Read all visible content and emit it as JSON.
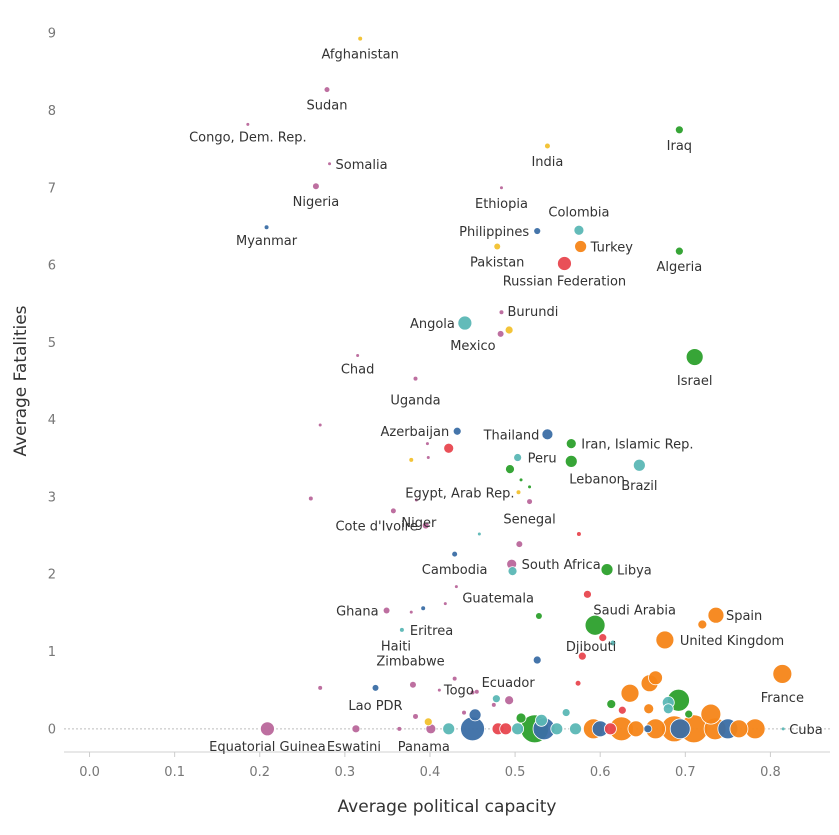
{
  "chart_data": {
    "type": "scatter",
    "title": "",
    "xlabel": "Average political capacity",
    "ylabel": "Average Fatalities",
    "xlim": [
      -0.03,
      0.87
    ],
    "ylim": [
      -0.3,
      9.3
    ],
    "x_ticks": [
      "0.0",
      "0.1",
      "0.2",
      "0.3",
      "0.4",
      "0.5",
      "0.6",
      "0.7",
      "0.8"
    ],
    "y_ticks": [
      "0",
      "1",
      "2",
      "3",
      "4",
      "5",
      "6",
      "7",
      "8",
      "9"
    ],
    "grid": false,
    "colors": {
      "orange": "#f58518",
      "green": "#2ca02c",
      "blue": "#3b6ea5",
      "teal": "#5bb7b5",
      "pink": "#b9679b",
      "red": "#e8474f",
      "yellow": "#f2c12e"
    },
    "points": [
      {
        "x": 0.318,
        "y": 8.93,
        "r": 2,
        "color": "yellow",
        "label": "Afghanistan"
      },
      {
        "x": 0.279,
        "y": 8.27,
        "r": 2.5,
        "color": "pink",
        "label": "Sudan"
      },
      {
        "x": 0.186,
        "y": 7.82,
        "r": 1.5,
        "color": "pink",
        "label": "Congo, Dem. Rep."
      },
      {
        "x": 0.282,
        "y": 7.31,
        "r": 1.5,
        "color": "pink",
        "label": "Somalia"
      },
      {
        "x": 0.266,
        "y": 7.02,
        "r": 3,
        "color": "pink",
        "label": "Nigeria"
      },
      {
        "x": 0.208,
        "y": 6.49,
        "r": 2,
        "color": "blue",
        "label": "Myanmar"
      },
      {
        "x": 0.538,
        "y": 7.54,
        "r": 2.5,
        "color": "yellow",
        "label": "India"
      },
      {
        "x": 0.693,
        "y": 7.75,
        "r": 4,
        "color": "green",
        "label": "Iraq"
      },
      {
        "x": 0.484,
        "y": 7.0,
        "r": 1.5,
        "color": "pink",
        "label": "Ethiopia"
      },
      {
        "x": 0.526,
        "y": 6.44,
        "r": 3.5,
        "color": "blue",
        "label": "Philippines"
      },
      {
        "x": 0.575,
        "y": 6.45,
        "r": 5,
        "color": "teal",
        "label": "Colombia"
      },
      {
        "x": 0.577,
        "y": 6.24,
        "r": 6,
        "color": "orange",
        "label": "Turkey"
      },
      {
        "x": 0.479,
        "y": 6.24,
        "r": 3,
        "color": "yellow",
        "label": "Pakistan"
      },
      {
        "x": 0.558,
        "y": 6.02,
        "r": 7,
        "color": "red",
        "label": "Russian Federation"
      },
      {
        "x": 0.693,
        "y": 6.18,
        "r": 4,
        "color": "green",
        "label": "Algeria"
      },
      {
        "x": 0.484,
        "y": 5.39,
        "r": 2,
        "color": "pink",
        "label": "Burundi"
      },
      {
        "x": 0.441,
        "y": 5.25,
        "r": 7,
        "color": "teal",
        "label": "Angola"
      },
      {
        "x": 0.493,
        "y": 5.16,
        "r": 4,
        "color": "yellow",
        "label": ""
      },
      {
        "x": 0.483,
        "y": 5.11,
        "r": 3,
        "color": "pink",
        "label": "Mexico"
      },
      {
        "x": 0.711,
        "y": 4.81,
        "r": 8.5,
        "color": "green",
        "label": "Israel"
      },
      {
        "x": 0.315,
        "y": 4.83,
        "r": 1.5,
        "color": "pink",
        "label": "Chad"
      },
      {
        "x": 0.383,
        "y": 4.53,
        "r": 2,
        "color": "pink",
        "label": "Uganda"
      },
      {
        "x": 0.271,
        "y": 3.93,
        "r": 1.5,
        "color": "pink",
        "label": ""
      },
      {
        "x": 0.432,
        "y": 3.85,
        "r": 4,
        "color": "blue",
        "label": "Azerbaijan"
      },
      {
        "x": 0.538,
        "y": 3.81,
        "r": 5.5,
        "color": "blue",
        "label": "Thailand"
      },
      {
        "x": 0.566,
        "y": 3.69,
        "r": 5,
        "color": "green",
        "label": "Iran, Islamic Rep."
      },
      {
        "x": 0.422,
        "y": 3.63,
        "r": 5,
        "color": "red",
        "label": ""
      },
      {
        "x": 0.397,
        "y": 3.69,
        "r": 1.5,
        "color": "pink",
        "label": ""
      },
      {
        "x": 0.398,
        "y": 3.51,
        "r": 1.5,
        "color": "pink",
        "label": ""
      },
      {
        "x": 0.378,
        "y": 3.48,
        "r": 2,
        "color": "yellow",
        "label": ""
      },
      {
        "x": 0.503,
        "y": 3.51,
        "r": 4,
        "color": "teal",
        "label": "Peru"
      },
      {
        "x": 0.566,
        "y": 3.46,
        "r": 6,
        "color": "green",
        "label": "Lebanon"
      },
      {
        "x": 0.646,
        "y": 3.41,
        "r": 6,
        "color": "teal",
        "label": "Brazil"
      },
      {
        "x": 0.494,
        "y": 3.36,
        "r": 4.5,
        "color": "green",
        "label": ""
      },
      {
        "x": 0.507,
        "y": 3.22,
        "r": 1.5,
        "color": "green",
        "label": ""
      },
      {
        "x": 0.517,
        "y": 3.13,
        "r": 1.5,
        "color": "green",
        "label": ""
      },
      {
        "x": 0.504,
        "y": 3.06,
        "r": 2,
        "color": "yellow",
        "label": "Egypt, Arab Rep."
      },
      {
        "x": 0.26,
        "y": 2.98,
        "r": 2,
        "color": "pink",
        "label": ""
      },
      {
        "x": 0.384,
        "y": 2.96,
        "r": 1.5,
        "color": "pink",
        "label": ""
      },
      {
        "x": 0.357,
        "y": 2.82,
        "r": 2.5,
        "color": "pink",
        "label": "Niger"
      },
      {
        "x": 0.517,
        "y": 2.94,
        "r": 2.5,
        "color": "pink",
        "label": "Senegal"
      },
      {
        "x": 0.395,
        "y": 2.63,
        "r": 3.5,
        "color": "pink",
        "label": "Cote d'Ivoire"
      },
      {
        "x": 0.458,
        "y": 2.52,
        "r": 1.5,
        "color": "teal",
        "label": ""
      },
      {
        "x": 0.575,
        "y": 2.52,
        "r": 2,
        "color": "red",
        "label": ""
      },
      {
        "x": 0.505,
        "y": 2.39,
        "r": 3,
        "color": "pink",
        "label": ""
      },
      {
        "x": 0.429,
        "y": 2.26,
        "r": 2.5,
        "color": "blue",
        "label": "Cambodia"
      },
      {
        "x": 0.496,
        "y": 2.13,
        "r": 5,
        "color": "pink",
        "label": "South Africa"
      },
      {
        "x": 0.497,
        "y": 2.04,
        "r": 4.5,
        "color": "teal",
        "label": ""
      },
      {
        "x": 0.608,
        "y": 2.06,
        "r": 6,
        "color": "green",
        "label": "Libya"
      },
      {
        "x": 0.431,
        "y": 1.84,
        "r": 1.5,
        "color": "pink",
        "label": "Guatemala"
      },
      {
        "x": 0.585,
        "y": 1.74,
        "r": 4,
        "color": "red",
        "label": "Saudi Arabia"
      },
      {
        "x": 0.418,
        "y": 1.62,
        "r": 1.5,
        "color": "pink",
        "label": ""
      },
      {
        "x": 0.349,
        "y": 1.53,
        "r": 3,
        "color": "pink",
        "label": "Ghana"
      },
      {
        "x": 0.392,
        "y": 1.56,
        "r": 2,
        "color": "blue",
        "label": ""
      },
      {
        "x": 0.378,
        "y": 1.51,
        "r": 1.5,
        "color": "pink",
        "label": ""
      },
      {
        "x": 0.367,
        "y": 1.28,
        "r": 2,
        "color": "teal",
        "label": "Eritrea"
      },
      {
        "x": 0.528,
        "y": 1.46,
        "r": 3,
        "color": "green",
        "label": ""
      },
      {
        "x": 0.594,
        "y": 1.34,
        "r": 10,
        "color": "green",
        "label": "Djibouti"
      },
      {
        "x": 0.736,
        "y": 1.47,
        "r": 8,
        "color": "orange",
        "label": "Spain"
      },
      {
        "x": 0.72,
        "y": 1.35,
        "r": 4.5,
        "color": "orange",
        "label": ""
      },
      {
        "x": 0.603,
        "y": 1.18,
        "r": 4,
        "color": "red",
        "label": ""
      },
      {
        "x": 0.615,
        "y": 1.11,
        "r": 2.5,
        "color": "teal",
        "label": ""
      },
      {
        "x": 0.676,
        "y": 1.15,
        "r": 9,
        "color": "orange",
        "label": "United Kingdom"
      },
      {
        "x": 0.579,
        "y": 0.94,
        "r": 4,
        "color": "red",
        "label": ""
      },
      {
        "x": 0.526,
        "y": 0.89,
        "r": 4,
        "color": "blue",
        "label": ""
      },
      {
        "x": 0.429,
        "y": 0.65,
        "r": 2,
        "color": "pink",
        "label": "Zimbabwe"
      },
      {
        "x": 0.38,
        "y": 0.57,
        "r": 3,
        "color": "pink",
        "label": ""
      },
      {
        "x": 0.271,
        "y": 0.53,
        "r": 2,
        "color": "pink",
        "label": ""
      },
      {
        "x": 0.336,
        "y": 0.53,
        "r": 3,
        "color": "blue",
        "label": "Lao PDR"
      },
      {
        "x": 0.411,
        "y": 0.5,
        "r": 1.5,
        "color": "pink",
        "label": ""
      },
      {
        "x": 0.45,
        "y": 0.47,
        "r": 2,
        "color": "pink",
        "label": ""
      },
      {
        "x": 0.455,
        "y": 0.48,
        "r": 2,
        "color": "pink",
        "label": "Togo"
      },
      {
        "x": 0.478,
        "y": 0.39,
        "r": 4,
        "color": "teal",
        "label": ""
      },
      {
        "x": 0.493,
        "y": 0.37,
        "r": 4.5,
        "color": "pink",
        "label": "Ecuador"
      },
      {
        "x": 0.574,
        "y": 0.59,
        "r": 2.5,
        "color": "red",
        "label": ""
      },
      {
        "x": 0.635,
        "y": 0.46,
        "r": 9,
        "color": "orange",
        "label": ""
      },
      {
        "x": 0.658,
        "y": 0.59,
        "r": 8.5,
        "color": "orange",
        "label": ""
      },
      {
        "x": 0.665,
        "y": 0.66,
        "r": 7,
        "color": "orange",
        "label": ""
      },
      {
        "x": 0.814,
        "y": 0.71,
        "r": 9.5,
        "color": "orange",
        "label": "France"
      },
      {
        "x": 0.692,
        "y": 0.37,
        "r": 11,
        "color": "green",
        "label": ""
      },
      {
        "x": 0.68,
        "y": 0.34,
        "r": 6,
        "color": "teal",
        "label": ""
      },
      {
        "x": 0.68,
        "y": 0.26,
        "r": 5,
        "color": "teal",
        "label": ""
      },
      {
        "x": 0.613,
        "y": 0.32,
        "r": 4.5,
        "color": "green",
        "label": ""
      },
      {
        "x": 0.626,
        "y": 0.24,
        "r": 4,
        "color": "red",
        "label": ""
      },
      {
        "x": 0.657,
        "y": 0.26,
        "r": 5,
        "color": "orange",
        "label": ""
      },
      {
        "x": 0.73,
        "y": 0.19,
        "r": 10,
        "color": "orange",
        "label": ""
      },
      {
        "x": 0.704,
        "y": 0.19,
        "r": 4,
        "color": "green",
        "label": ""
      },
      {
        "x": 0.56,
        "y": 0.21,
        "r": 4,
        "color": "teal",
        "label": ""
      },
      {
        "x": 0.453,
        "y": 0.18,
        "r": 6,
        "color": "blue",
        "label": ""
      },
      {
        "x": 0.531,
        "y": 0.11,
        "r": 6,
        "color": "teal",
        "label": ""
      },
      {
        "x": 0.383,
        "y": 0.16,
        "r": 2.5,
        "color": "pink",
        "label": ""
      },
      {
        "x": 0.44,
        "y": 0.21,
        "r": 2,
        "color": "pink",
        "label": ""
      },
      {
        "x": 0.507,
        "y": 0.14,
        "r": 5,
        "color": "green",
        "label": ""
      },
      {
        "x": 0.475,
        "y": 0.31,
        "r": 2,
        "color": "pink",
        "label": ""
      },
      {
        "x": 0.209,
        "y": 0.0,
        "r": 7,
        "color": "pink",
        "label": "Equatorial Guinea"
      },
      {
        "x": 0.313,
        "y": 0.0,
        "r": 4,
        "color": "pink",
        "label": "Eswatini"
      },
      {
        "x": 0.364,
        "y": 0.0,
        "r": 2,
        "color": "pink",
        "label": ""
      },
      {
        "x": 0.398,
        "y": 0.09,
        "r": 4,
        "color": "yellow",
        "label": ""
      },
      {
        "x": 0.401,
        "y": 0.0,
        "r": 5,
        "color": "pink",
        "label": "Panama"
      },
      {
        "x": 0.422,
        "y": 0.0,
        "r": 6,
        "color": "teal",
        "label": ""
      },
      {
        "x": 0.45,
        "y": 0.0,
        "r": 12,
        "color": "blue",
        "label": ""
      },
      {
        "x": 0.48,
        "y": 0.0,
        "r": 6,
        "color": "red",
        "label": ""
      },
      {
        "x": 0.489,
        "y": 0.0,
        "r": 6,
        "color": "red",
        "label": ""
      },
      {
        "x": 0.503,
        "y": 0.0,
        "r": 6,
        "color": "teal",
        "label": ""
      },
      {
        "x": 0.523,
        "y": 0.0,
        "r": 14,
        "color": "green",
        "label": ""
      },
      {
        "x": 0.534,
        "y": 0.0,
        "r": 11,
        "color": "blue",
        "label": ""
      },
      {
        "x": 0.549,
        "y": 0.0,
        "r": 6,
        "color": "teal",
        "label": ""
      },
      {
        "x": 0.571,
        "y": 0.0,
        "r": 6,
        "color": "teal",
        "label": ""
      },
      {
        "x": 0.592,
        "y": 0.0,
        "r": 10,
        "color": "orange",
        "label": ""
      },
      {
        "x": 0.6,
        "y": 0.0,
        "r": 8,
        "color": "blue",
        "label": ""
      },
      {
        "x": 0.612,
        "y": 0.0,
        "r": 6,
        "color": "red",
        "label": ""
      },
      {
        "x": 0.625,
        "y": 0.0,
        "r": 12,
        "color": "orange",
        "label": ""
      },
      {
        "x": 0.642,
        "y": 0.0,
        "r": 8,
        "color": "orange",
        "label": ""
      },
      {
        "x": 0.656,
        "y": 0.0,
        "r": 4,
        "color": "blue",
        "label": ""
      },
      {
        "x": 0.665,
        "y": 0.0,
        "r": 10,
        "color": "orange",
        "label": ""
      },
      {
        "x": 0.687,
        "y": 0.0,
        "r": 13,
        "color": "orange",
        "label": ""
      },
      {
        "x": 0.694,
        "y": 0.0,
        "r": 10,
        "color": "blue",
        "label": ""
      },
      {
        "x": 0.71,
        "y": 0.0,
        "r": 14,
        "color": "orange",
        "label": ""
      },
      {
        "x": 0.735,
        "y": 0.0,
        "r": 11,
        "color": "orange",
        "label": ""
      },
      {
        "x": 0.75,
        "y": 0.0,
        "r": 10,
        "color": "blue",
        "label": ""
      },
      {
        "x": 0.763,
        "y": 0.0,
        "r": 9,
        "color": "orange",
        "label": ""
      },
      {
        "x": 0.782,
        "y": 0.0,
        "r": 10,
        "color": "orange",
        "label": ""
      },
      {
        "x": 0.815,
        "y": 0.0,
        "r": 1.5,
        "color": "teal",
        "label": "Cuba"
      }
    ]
  }
}
